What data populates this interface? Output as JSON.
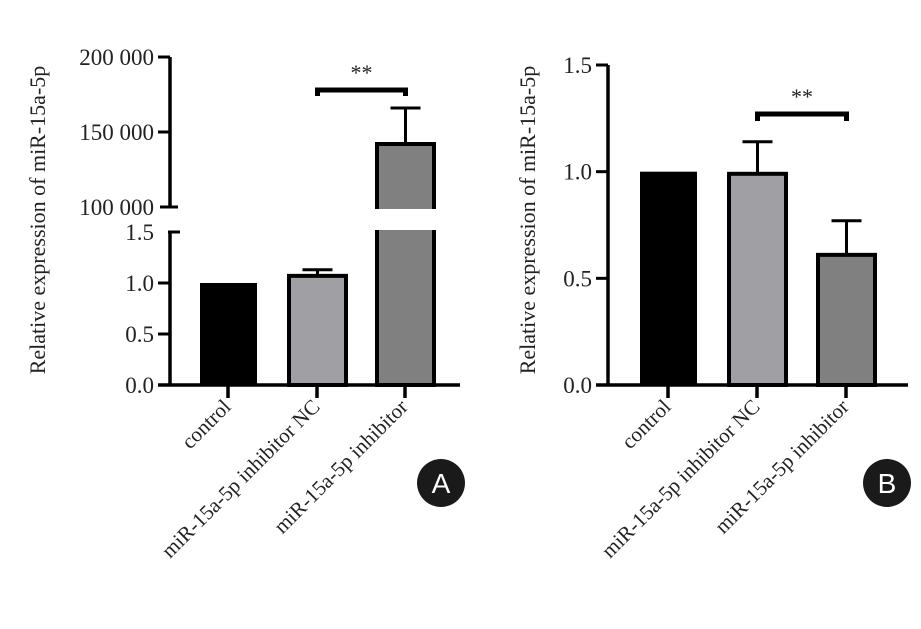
{
  "chart_data": [
    {
      "id": "A",
      "type": "bar",
      "panel_label": "A",
      "title": "",
      "xlabel": "",
      "ylabel": "Relative expression of miR-15a-5p",
      "categories": [
        "control",
        "miR-15a-5p inhibitor NC",
        "miR-15a-5p inhibitor"
      ],
      "values": [
        1.0,
        1.07,
        142000
      ],
      "error_upper": [
        null,
        1.13,
        166000
      ],
      "bar_colors": [
        "#000000",
        "#a0a0a4",
        "#808080"
      ],
      "broken_axis": true,
      "segments": [
        {
          "name": "lower",
          "ylim": [
            0,
            1.5
          ],
          "ticks": [
            0,
            0.5,
            1.0,
            1.5
          ],
          "tick_labels": [
            "0.0",
            "0.5",
            "1.0",
            "1.5"
          ]
        },
        {
          "name": "upper",
          "ylim": [
            100000,
            200000
          ],
          "ticks": [
            100000,
            150000,
            200000
          ],
          "tick_labels": [
            "100 000",
            "150 000",
            "200 000"
          ]
        }
      ],
      "significance": [
        {
          "from": 1,
          "to": 2,
          "label": "**"
        }
      ],
      "grid": false,
      "legend": "none"
    },
    {
      "id": "B",
      "type": "bar",
      "panel_label": "B",
      "title": "",
      "xlabel": "",
      "ylabel": "Relative expression of miR-15a-5p",
      "categories": [
        "control",
        "miR-15a-5p inhibitor NC",
        "miR-15a-5p inhibitor"
      ],
      "values": [
        1.0,
        0.99,
        0.61
      ],
      "error_upper": [
        null,
        1.14,
        0.77
      ],
      "bar_colors": [
        "#000000",
        "#a0a0a4",
        "#808080"
      ],
      "ylim": [
        0,
        1.5
      ],
      "ticks": [
        0,
        0.5,
        1.0,
        1.5
      ],
      "tick_labels": [
        "0.0",
        "0.5",
        "1.0",
        "1.5"
      ],
      "significance": [
        {
          "from": 1,
          "to": 2,
          "label": "**"
        }
      ],
      "grid": false,
      "legend": "none"
    }
  ]
}
